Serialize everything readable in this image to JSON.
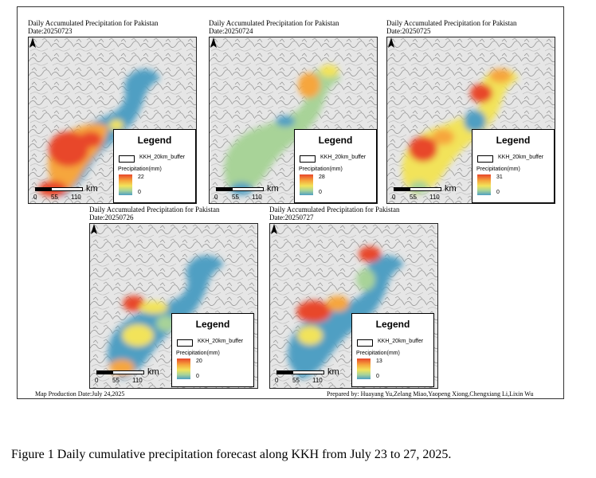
{
  "panels": [
    {
      "title": "Daily Accumulated Precipitation for Pakistan",
      "date": "Date:20250723",
      "legend_title": "Legend",
      "layer_name": "KKH_20km_buffer",
      "precip_label": "Precipitation(mm)",
      "max_value": "22",
      "min_value": "0",
      "scale_unit": "km",
      "scale_ticks": [
        "0",
        "55",
        "110"
      ]
    },
    {
      "title": "Daily Accumulated Precipitation for Pakistan",
      "date": "Date:20250724",
      "legend_title": "Legend",
      "layer_name": "KKH_20km_buffer",
      "precip_label": "Precipitation(mm)",
      "max_value": "28",
      "min_value": "0",
      "scale_unit": "km",
      "scale_ticks": [
        "0",
        "55",
        "110"
      ]
    },
    {
      "title": "Daily Accumulated Precipitation for Pakistan",
      "date": "Date:20250725",
      "legend_title": "Legend",
      "layer_name": "KKH_20km_buffer",
      "precip_label": "Precipitation(mm)",
      "max_value": "31",
      "min_value": "0",
      "scale_unit": "km",
      "scale_ticks": [
        "0",
        "55",
        "110"
      ]
    },
    {
      "title": "Daily Accumulated Precipitation for Pakistan",
      "date": "Date:20250726",
      "legend_title": "Legend",
      "layer_name": "KKH_20km_buffer",
      "precip_label": "Precipitation(mm)",
      "max_value": "20",
      "min_value": "0",
      "scale_unit": "km",
      "scale_ticks": [
        "0",
        "55",
        "110"
      ]
    },
    {
      "title": "Daily Accumulated Precipitation for Pakistan",
      "date": "Date:20250727",
      "legend_title": "Legend",
      "layer_name": "KKH_20km_buffer",
      "precip_label": "Precipitation(mm)",
      "max_value": "13",
      "min_value": "0",
      "scale_unit": "km",
      "scale_ticks": [
        "0",
        "55",
        "110"
      ]
    }
  ],
  "footer": {
    "production_date": "Map Production Date:July 24,2025",
    "prepared_by": "Prepared by: Huayang Yu,Zelang Miao,Yaopeng Xiong,Chengxiang Li,Lixin Wu"
  },
  "caption": "Figure 1 Daily cumulative precipitation forecast along KKH from July 23 to 27, 2025.",
  "colors": {
    "high": "#e8462a",
    "mid_high": "#f6a63c",
    "mid": "#f2e35a",
    "mid_low": "#a8d398",
    "low": "#4f9fc3",
    "terrain": "#e4e4e4"
  }
}
